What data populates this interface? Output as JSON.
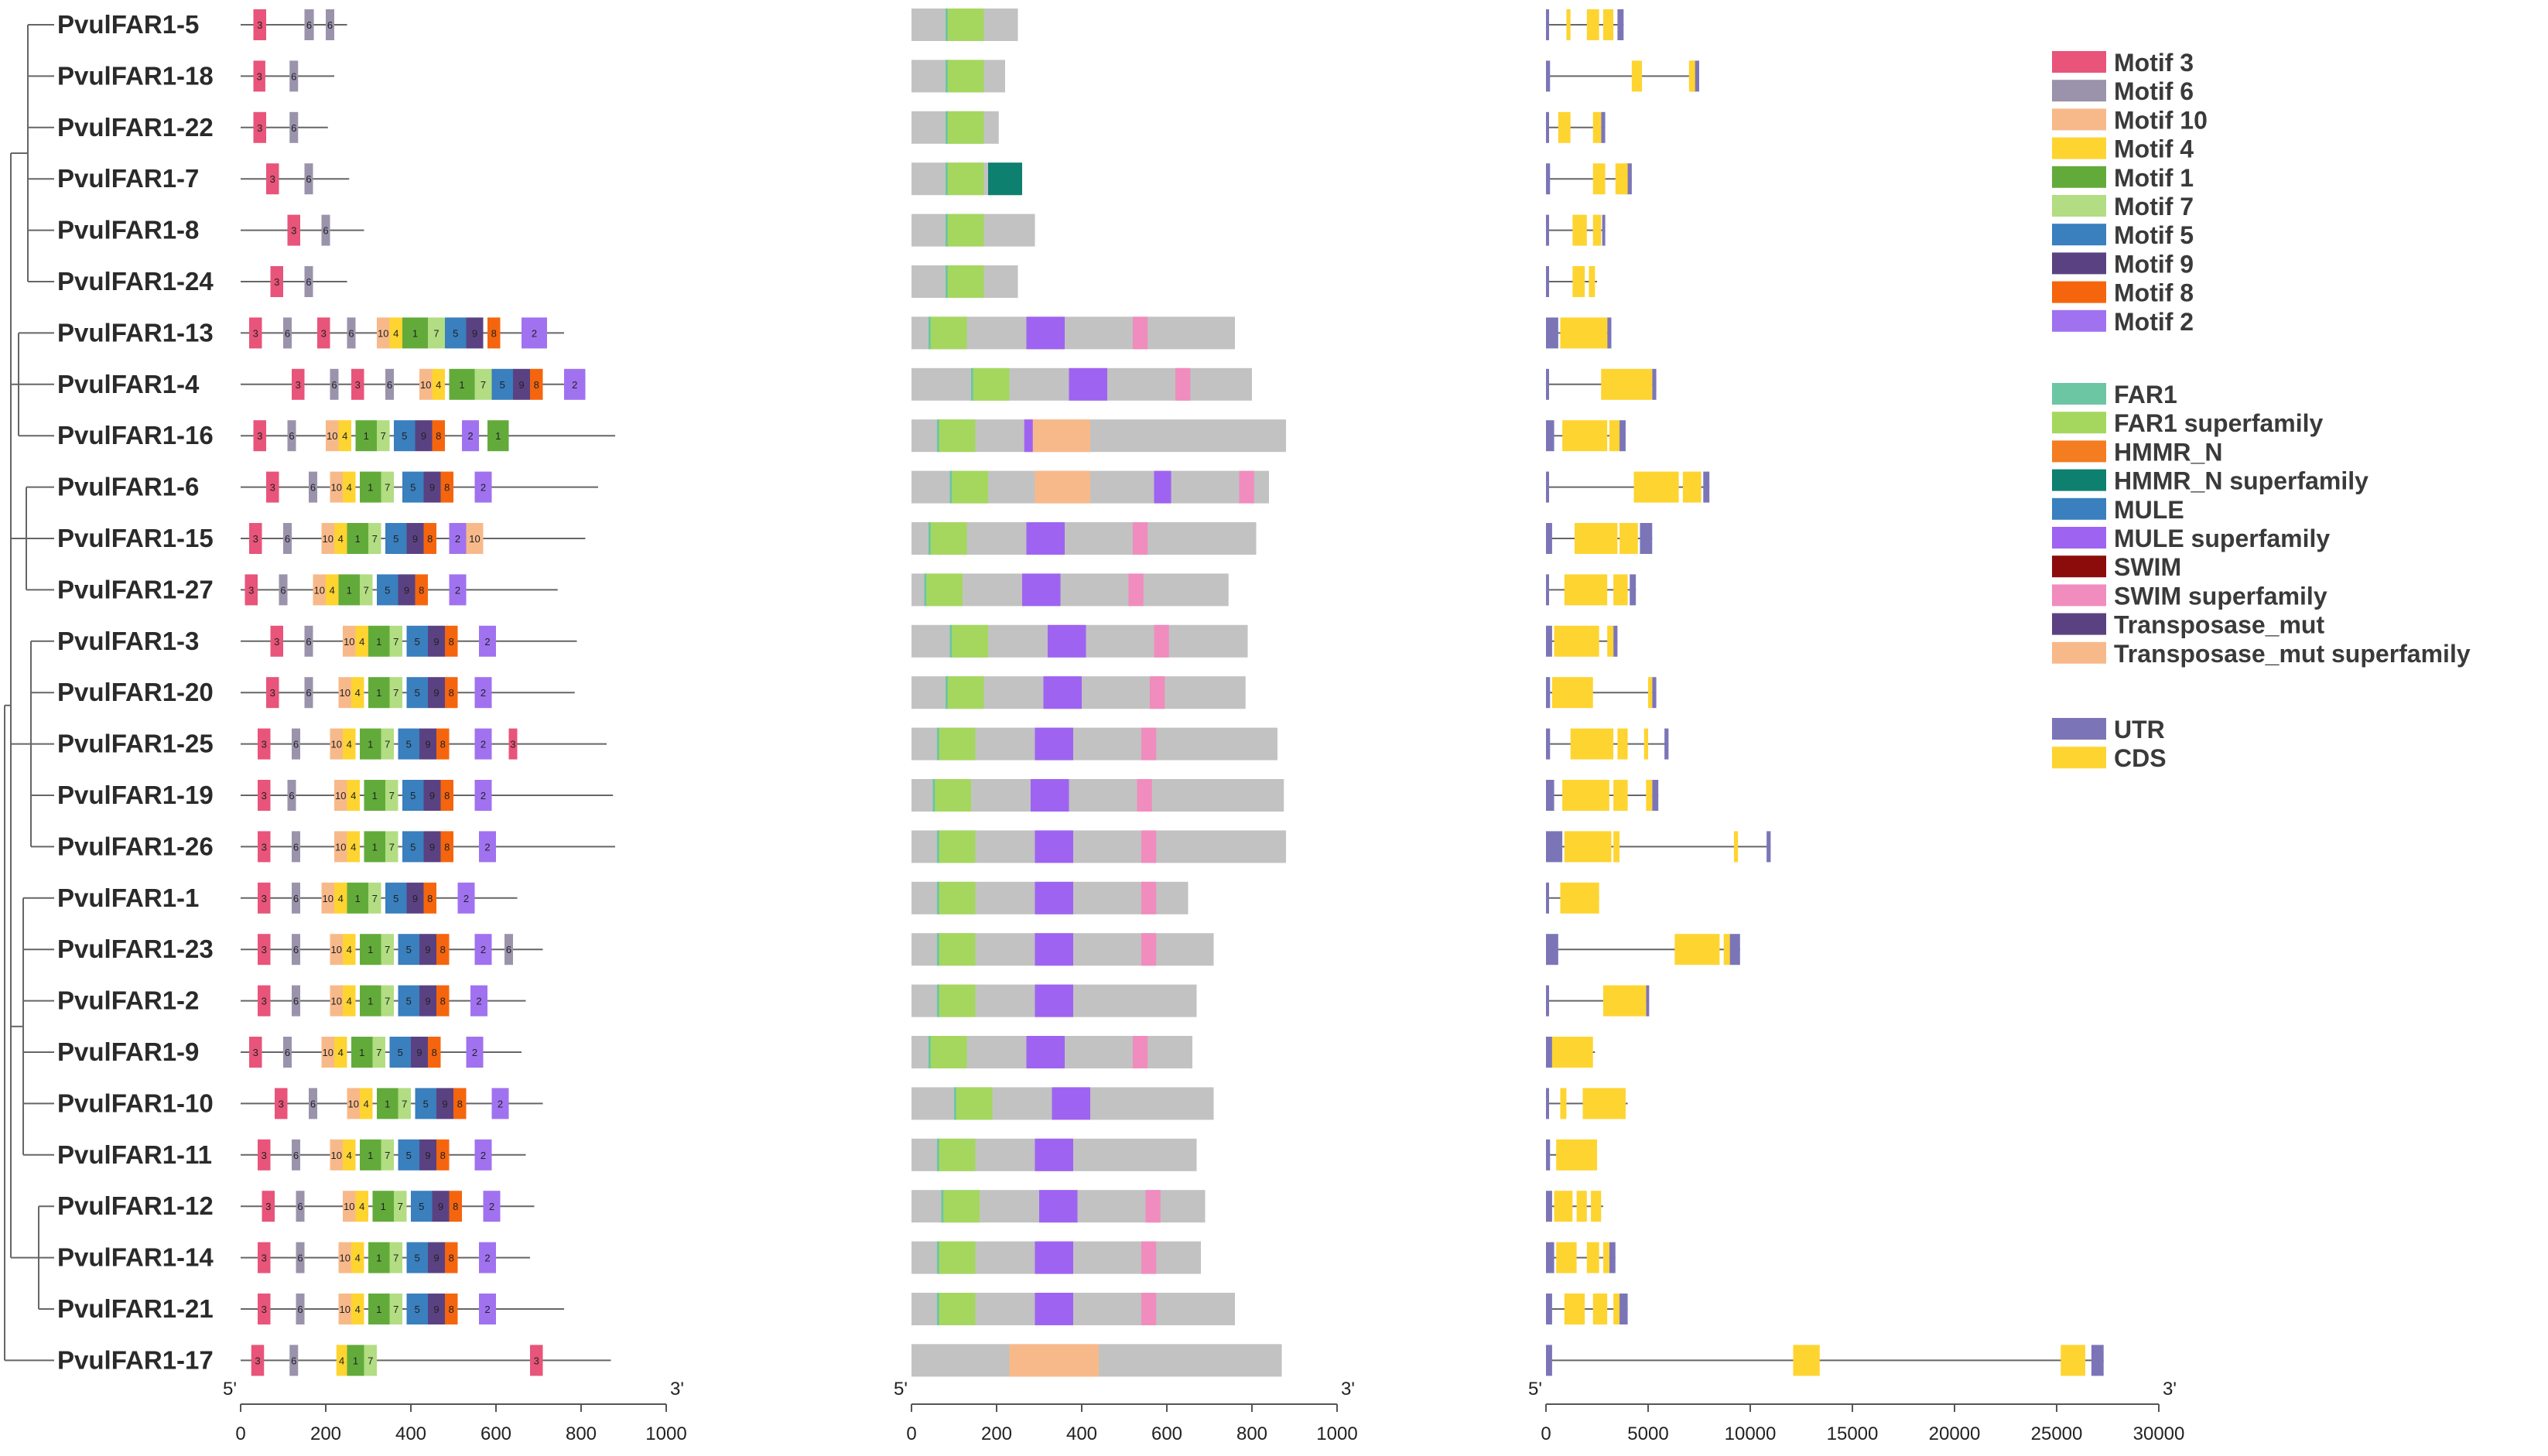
{
  "genes": [
    {
      "name": "PvulFAR1-5"
    },
    {
      "name": "PvulFAR1-18"
    },
    {
      "name": "PvulFAR1-22"
    },
    {
      "name": "PvulFAR1-7"
    },
    {
      "name": "PvulFAR1-8"
    },
    {
      "name": "PvulFAR1-24"
    },
    {
      "name": "PvulFAR1-13"
    },
    {
      "name": "PvulFAR1-4"
    },
    {
      "name": "PvulFAR1-16"
    },
    {
      "name": "PvulFAR1-6"
    },
    {
      "name": "PvulFAR1-15"
    },
    {
      "name": "PvulFAR1-27"
    },
    {
      "name": "PvulFAR1-3"
    },
    {
      "name": "PvulFAR1-20"
    },
    {
      "name": "PvulFAR1-25"
    },
    {
      "name": "PvulFAR1-19"
    },
    {
      "name": "PvulFAR1-26"
    },
    {
      "name": "PvulFAR1-1"
    },
    {
      "name": "PvulFAR1-23"
    },
    {
      "name": "PvulFAR1-2"
    },
    {
      "name": "PvulFAR1-9"
    },
    {
      "name": "PvulFAR1-10"
    },
    {
      "name": "PvulFAR1-11"
    },
    {
      "name": "PvulFAR1-12"
    },
    {
      "name": "PvulFAR1-14"
    },
    {
      "name": "PvulFAR1-21"
    },
    {
      "name": "PvulFAR1-17"
    }
  ],
  "axes": {
    "motif": {
      "end5": "5'",
      "end3": "3'",
      "ticks": [
        "0",
        "200",
        "400",
        "600",
        "800",
        "1000"
      ]
    },
    "domain": {
      "end5": "5'",
      "end3": "3'",
      "ticks": [
        "0",
        "200",
        "400",
        "600",
        "800",
        "1000"
      ]
    },
    "structure": {
      "end5": "5'",
      "end3": "3'",
      "ticks": [
        "0",
        "5000",
        "10000",
        "15000",
        "20000",
        "25000",
        "30000"
      ]
    }
  },
  "legend_motifs": [
    {
      "label": "Motif 3",
      "color": "#e8547a"
    },
    {
      "label": "Motif 6",
      "color": "#9a93ab"
    },
    {
      "label": "Motif 10",
      "color": "#f8b98a"
    },
    {
      "label": "Motif 4",
      "color": "#fed431"
    },
    {
      "label": "Motif 1",
      "color": "#62ab3b"
    },
    {
      "label": "Motif 7",
      "color": "#b2dd82"
    },
    {
      "label": "Motif 5",
      "color": "#3a7fbe"
    },
    {
      "label": "Motif 9",
      "color": "#5a4282"
    },
    {
      "label": "Motif 8",
      "color": "#f5650e"
    },
    {
      "label": "Motif 2",
      "color": "#a072f0"
    }
  ],
  "legend_domains": [
    {
      "label": "FAR1",
      "color": "#6cc6a4"
    },
    {
      "label": "FAR1 superfamily",
      "color": "#a5d75f"
    },
    {
      "label": "HMMR_N",
      "color": "#f47d22"
    },
    {
      "label": "HMMR_N superfamily",
      "color": "#0e8070"
    },
    {
      "label": "MULE",
      "color": "#3a7fbe"
    },
    {
      "label": "MULE superfamily",
      "color": "#9f63f2"
    },
    {
      "label": "SWIM",
      "color": "#8c0c0c"
    },
    {
      "label": "SWIM superfamily",
      "color": "#f18cbe"
    },
    {
      "label": "Transposase_mut",
      "color": "#5a4282"
    },
    {
      "label": "Transposase_mut superfamily",
      "color": "#f8b98a"
    }
  ],
  "legend_structure": [
    {
      "label": "UTR",
      "color": "#7b75b8"
    },
    {
      "label": "CDS",
      "color": "#fed431"
    }
  ],
  "motif_labels": {
    "Motif 3": "3",
    "Motif 6": "6",
    "Motif 10": "10",
    "Motif 4": "4",
    "Motif 1": "1",
    "Motif 7": "7",
    "Motif 5": "5",
    "Motif 9": "9",
    "Motif 8": "8",
    "Motif 2": "2"
  },
  "colors": {
    "protein_bar": "#c2c2c2",
    "line": "#666666"
  }
}
